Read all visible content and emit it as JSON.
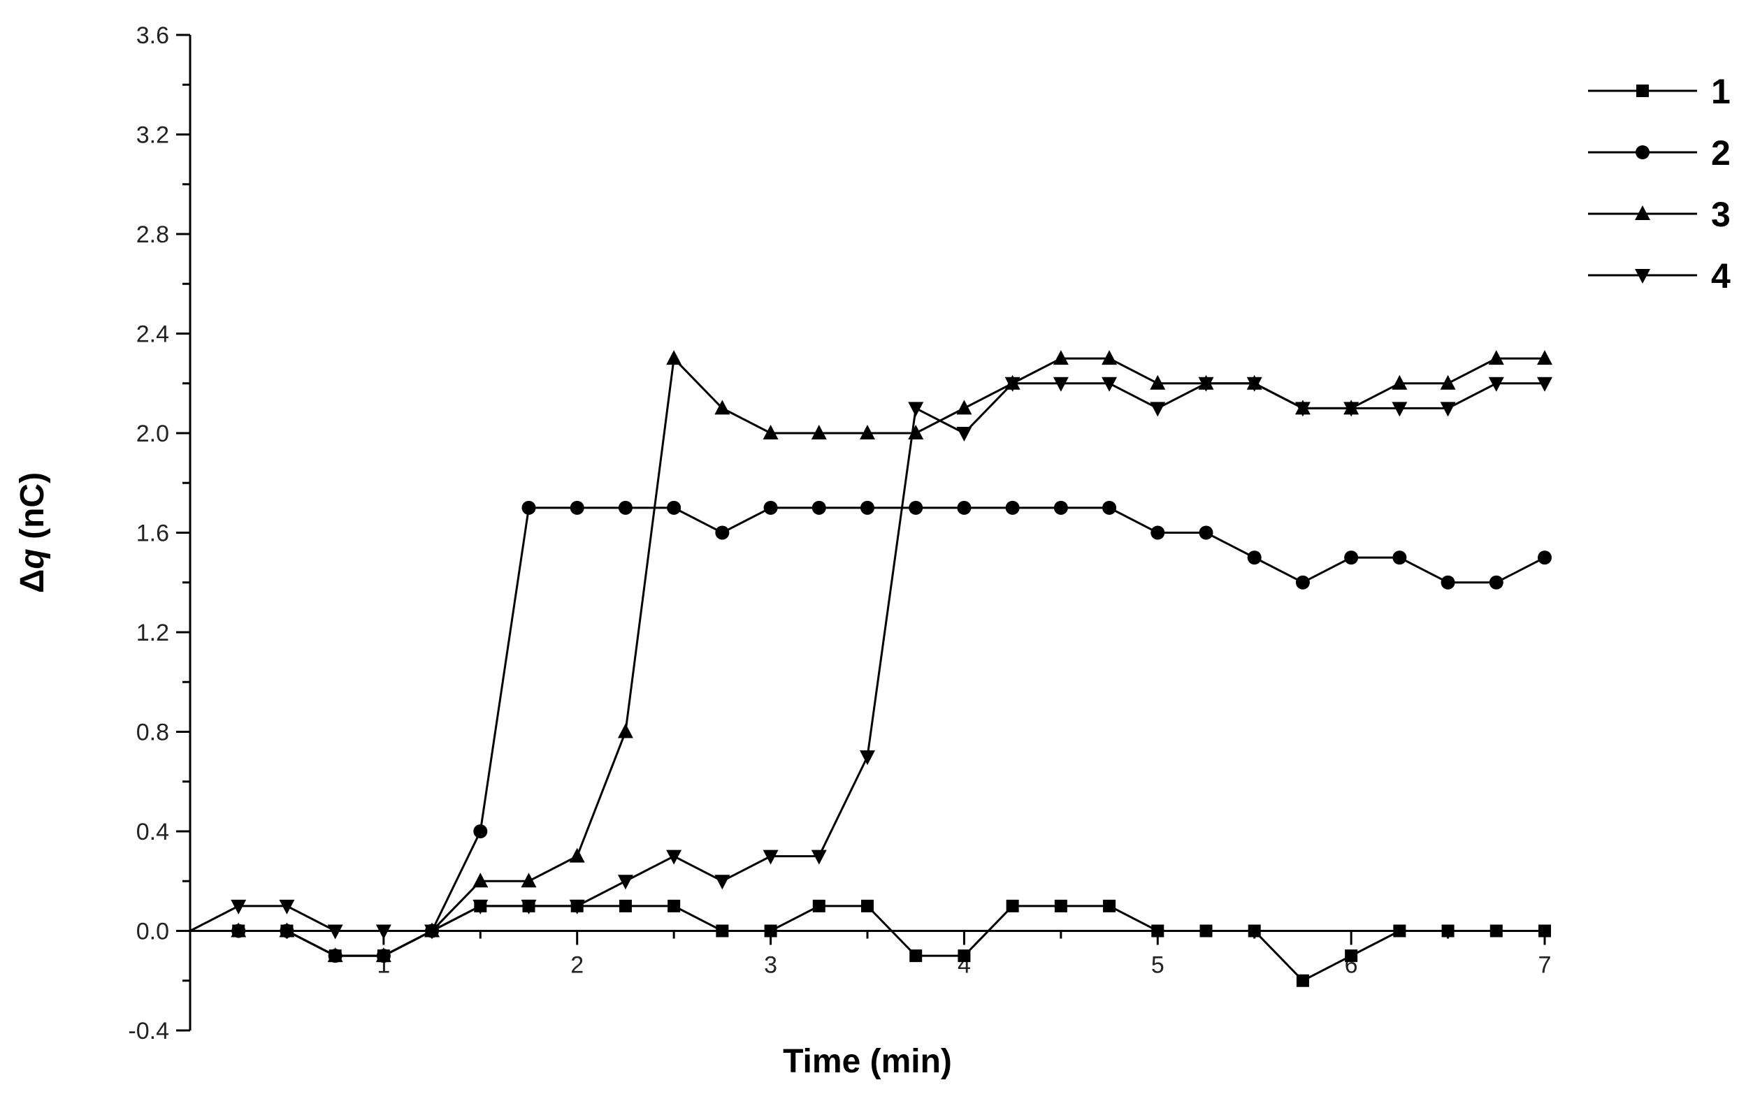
{
  "chart_data": {
    "type": "line",
    "xlabel": "Time (min)",
    "ylabel_symbol": "Δ",
    "ylabel_var": "q",
    "ylabel_unit": " (nC)",
    "xlim": [
      0,
      7
    ],
    "ylim": [
      -0.4,
      3.6
    ],
    "xticks": [
      {
        "value": 1,
        "label": "1"
      },
      {
        "value": 2,
        "label": "2"
      },
      {
        "value": 3,
        "label": "3"
      },
      {
        "value": 4,
        "label": "4"
      },
      {
        "value": 5,
        "label": "5"
      },
      {
        "value": 6,
        "label": "6"
      },
      {
        "value": 7,
        "label": "7"
      }
    ],
    "yticks": [
      {
        "value": -0.4,
        "label": "-0.4"
      },
      {
        "value": 0.0,
        "label": "0.0"
      },
      {
        "value": 0.4,
        "label": "0.4"
      },
      {
        "value": 0.8,
        "label": "0.8"
      },
      {
        "value": 1.2,
        "label": "1.2"
      },
      {
        "value": 1.6,
        "label": "1.6"
      },
      {
        "value": 2.0,
        "label": "2.0"
      },
      {
        "value": 2.4,
        "label": "2.4"
      },
      {
        "value": 2.8,
        "label": "2.8"
      },
      {
        "value": 3.2,
        "label": "3.2"
      },
      {
        "value": 3.6,
        "label": "3.6"
      }
    ],
    "grid": false,
    "legend_position": "top-right",
    "x": [
      0,
      0.25,
      0.5,
      0.75,
      1,
      1.25,
      1.5,
      1.75,
      2,
      2.25,
      2.5,
      2.75,
      3,
      3.25,
      3.5,
      3.75,
      4,
      4.25,
      4.5,
      4.75,
      5,
      5.25,
      5.5,
      5.75,
      6,
      6.25,
      6.5,
      6.75,
      7
    ],
    "series": [
      {
        "name": "1",
        "marker": "square",
        "values": [
          0,
          0,
          0,
          -0.1,
          -0.1,
          0,
          0.1,
          0.1,
          0.1,
          0.1,
          0.1,
          0,
          0,
          0.1,
          0.1,
          -0.1,
          -0.1,
          0.1,
          0.1,
          0.1,
          0,
          0,
          0,
          -0.2,
          -0.1,
          0,
          0,
          0,
          0
        ]
      },
      {
        "name": "2",
        "marker": "circle",
        "values": [
          0,
          0,
          0,
          -0.1,
          -0.1,
          0,
          0.4,
          1.7,
          1.7,
          1.7,
          1.7,
          1.6,
          1.7,
          1.7,
          1.7,
          1.7,
          1.7,
          1.7,
          1.7,
          1.7,
          1.6,
          1.6,
          1.5,
          1.4,
          1.5,
          1.5,
          1.4,
          1.4,
          1.5
        ]
      },
      {
        "name": "3",
        "marker": "triangle-up",
        "values": [
          0,
          0,
          0,
          -0.1,
          -0.1,
          0,
          0.2,
          0.2,
          0.3,
          0.8,
          2.3,
          2.1,
          2.0,
          2.0,
          2.0,
          2.0,
          2.1,
          2.2,
          2.3,
          2.3,
          2.2,
          2.2,
          2.2,
          2.1,
          2.1,
          2.2,
          2.2,
          2.3,
          2.3
        ]
      },
      {
        "name": "4",
        "marker": "triangle-down",
        "values": [
          0,
          0.1,
          0.1,
          0,
          0,
          0,
          0.1,
          0.1,
          0.1,
          0.2,
          0.3,
          0.2,
          0.3,
          0.3,
          0.7,
          2.1,
          2.0,
          2.2,
          2.2,
          2.2,
          2.1,
          2.2,
          2.2,
          2.1,
          2.1,
          2.1,
          2.1,
          2.2,
          2.2
        ]
      }
    ]
  }
}
